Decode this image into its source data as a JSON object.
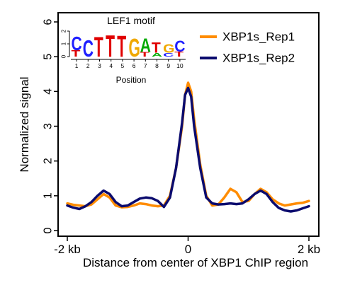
{
  "chart_data": {
    "type": "line",
    "xlabel": "Distance from center of XBP1 ChIP region",
    "ylabel": "Normalized signal",
    "xlim": [
      -2,
      2
    ],
    "ylim": [
      0,
      6
    ],
    "x_ticks": [
      -2,
      0,
      2
    ],
    "x_tick_labels": [
      "-2 kb",
      "0",
      "2 kb"
    ],
    "y_ticks": [
      0,
      1,
      2,
      3,
      4,
      5,
      6
    ],
    "y_tick_labels": [
      "0",
      "1",
      "2",
      "3",
      "4",
      "5",
      "6"
    ],
    "legend_position": "top-right",
    "grid": false,
    "series": [
      {
        "name": "XBP1s_Rep1",
        "color": "#ff8c00",
        "points": [
          [
            -2.0,
            0.78
          ],
          [
            -1.9,
            0.74
          ],
          [
            -1.8,
            0.72
          ],
          [
            -1.7,
            0.7
          ],
          [
            -1.6,
            0.75
          ],
          [
            -1.5,
            0.9
          ],
          [
            -1.4,
            1.05
          ],
          [
            -1.3,
            0.95
          ],
          [
            -1.2,
            0.72
          ],
          [
            -1.1,
            0.67
          ],
          [
            -1.0,
            0.68
          ],
          [
            -0.9,
            0.72
          ],
          [
            -0.8,
            0.78
          ],
          [
            -0.7,
            0.76
          ],
          [
            -0.6,
            0.72
          ],
          [
            -0.5,
            0.7
          ],
          [
            -0.4,
            0.72
          ],
          [
            -0.3,
            1.0
          ],
          [
            -0.2,
            1.8
          ],
          [
            -0.1,
            3.0
          ],
          [
            -0.05,
            3.9
          ],
          [
            0.0,
            4.25
          ],
          [
            0.05,
            4.0
          ],
          [
            0.1,
            3.2
          ],
          [
            0.2,
            1.9
          ],
          [
            0.3,
            1.0
          ],
          [
            0.4,
            0.72
          ],
          [
            0.5,
            0.75
          ],
          [
            0.6,
            0.95
          ],
          [
            0.7,
            1.2
          ],
          [
            0.8,
            1.1
          ],
          [
            0.9,
            0.82
          ],
          [
            1.0,
            0.85
          ],
          [
            1.1,
            1.05
          ],
          [
            1.2,
            1.2
          ],
          [
            1.3,
            1.1
          ],
          [
            1.4,
            0.9
          ],
          [
            1.5,
            0.78
          ],
          [
            1.6,
            0.72
          ],
          [
            1.7,
            0.75
          ],
          [
            1.8,
            0.78
          ],
          [
            1.9,
            0.8
          ],
          [
            2.0,
            0.85
          ]
        ]
      },
      {
        "name": "XBP1s_Rep2",
        "color": "#0b0b6e",
        "points": [
          [
            -2.0,
            0.72
          ],
          [
            -1.9,
            0.66
          ],
          [
            -1.8,
            0.62
          ],
          [
            -1.7,
            0.7
          ],
          [
            -1.6,
            0.82
          ],
          [
            -1.5,
            1.0
          ],
          [
            -1.4,
            1.15
          ],
          [
            -1.3,
            1.05
          ],
          [
            -1.2,
            0.82
          ],
          [
            -1.1,
            0.7
          ],
          [
            -1.0,
            0.72
          ],
          [
            -0.9,
            0.82
          ],
          [
            -0.8,
            0.92
          ],
          [
            -0.7,
            0.95
          ],
          [
            -0.6,
            0.93
          ],
          [
            -0.5,
            0.85
          ],
          [
            -0.4,
            0.68
          ],
          [
            -0.3,
            0.95
          ],
          [
            -0.2,
            1.8
          ],
          [
            -0.1,
            3.1
          ],
          [
            -0.05,
            3.9
          ],
          [
            0.0,
            4.1
          ],
          [
            0.05,
            3.85
          ],
          [
            0.1,
            3.0
          ],
          [
            0.2,
            1.8
          ],
          [
            0.3,
            0.95
          ],
          [
            0.4,
            0.78
          ],
          [
            0.5,
            0.75
          ],
          [
            0.6,
            0.76
          ],
          [
            0.7,
            0.78
          ],
          [
            0.8,
            0.76
          ],
          [
            0.9,
            0.78
          ],
          [
            1.0,
            0.9
          ],
          [
            1.1,
            1.05
          ],
          [
            1.2,
            1.15
          ],
          [
            1.3,
            1.05
          ],
          [
            1.4,
            0.82
          ],
          [
            1.5,
            0.65
          ],
          [
            1.6,
            0.58
          ],
          [
            1.7,
            0.55
          ],
          [
            1.8,
            0.58
          ],
          [
            1.9,
            0.64
          ],
          [
            2.0,
            0.7
          ]
        ]
      }
    ],
    "inset": {
      "title": "LEF1 motif",
      "xlabel": "Position",
      "x_ticks": [
        "1",
        "2",
        "3",
        "4",
        "5",
        "6",
        "7",
        "8",
        "9",
        "10"
      ],
      "y_ticks": [
        "0",
        "1",
        "2"
      ],
      "stacks": [
        [
          [
            "T",
            0.5
          ],
          [
            "C",
            1.1
          ]
        ],
        [
          [
            "C",
            1.35
          ]
        ],
        [
          [
            "T",
            1.6
          ]
        ],
        [
          [
            "T",
            1.75
          ]
        ],
        [
          [
            "T",
            1.7
          ]
        ],
        [
          [
            "G",
            1.45
          ]
        ],
        [
          [
            "T",
            0.35
          ],
          [
            "A",
            1.1
          ]
        ],
        [
          [
            "A",
            0.3
          ],
          [
            "T",
            0.85
          ]
        ],
        [
          [
            "C",
            0.3
          ],
          [
            "G",
            0.7
          ]
        ],
        [
          [
            "T",
            0.4
          ],
          [
            "C",
            0.9
          ]
        ]
      ],
      "letter_colors": {
        "A": "#00aa00",
        "C": "#1f1fff",
        "G": "#f0a800",
        "T": "#e00000"
      }
    }
  }
}
